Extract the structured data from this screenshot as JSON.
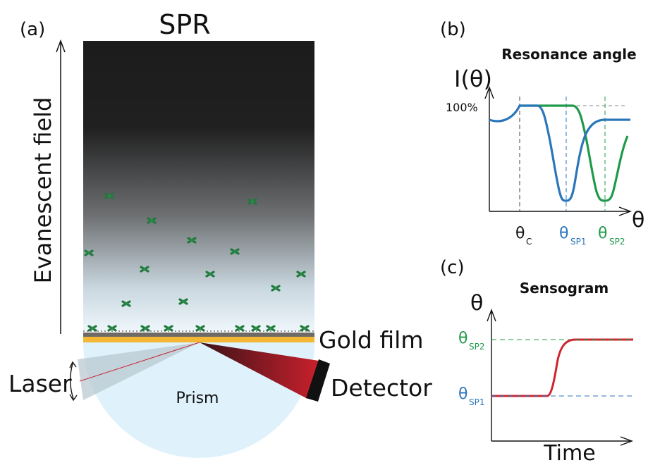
{
  "colors": {
    "blue": "#2b76b9",
    "green": "#1e9a4a",
    "red": "#d0242f",
    "gold": "#f4b733",
    "prism": "#dff1fb",
    "molecule": "#1f7a3c"
  },
  "panel_a": {
    "label": "(a)",
    "title": "SPR",
    "axis_label": "Evanescent field",
    "gold_label": "Gold film",
    "laser_label": "Laser",
    "detector_label": "Detector",
    "prism_label": "Prism"
  },
  "panel_b": {
    "label": "(b)",
    "title": "Resonance angle",
    "ylabel": "I(θ)",
    "xlabel": "θ",
    "ref_label": "100%",
    "tick_c": "θ",
    "tick_c_sub": "C",
    "tick_sp1": "θ",
    "tick_sp1_sub": "SP1",
    "tick_sp2": "θ",
    "tick_sp2_sub": "SP2"
  },
  "panel_c": {
    "label": "(c)",
    "title": "Sensogram",
    "ylabel": "θ",
    "xlabel": "Time",
    "sp1": "θ",
    "sp1_sub": "SP1",
    "sp2": "θ",
    "sp2_sub": "SP2"
  }
}
